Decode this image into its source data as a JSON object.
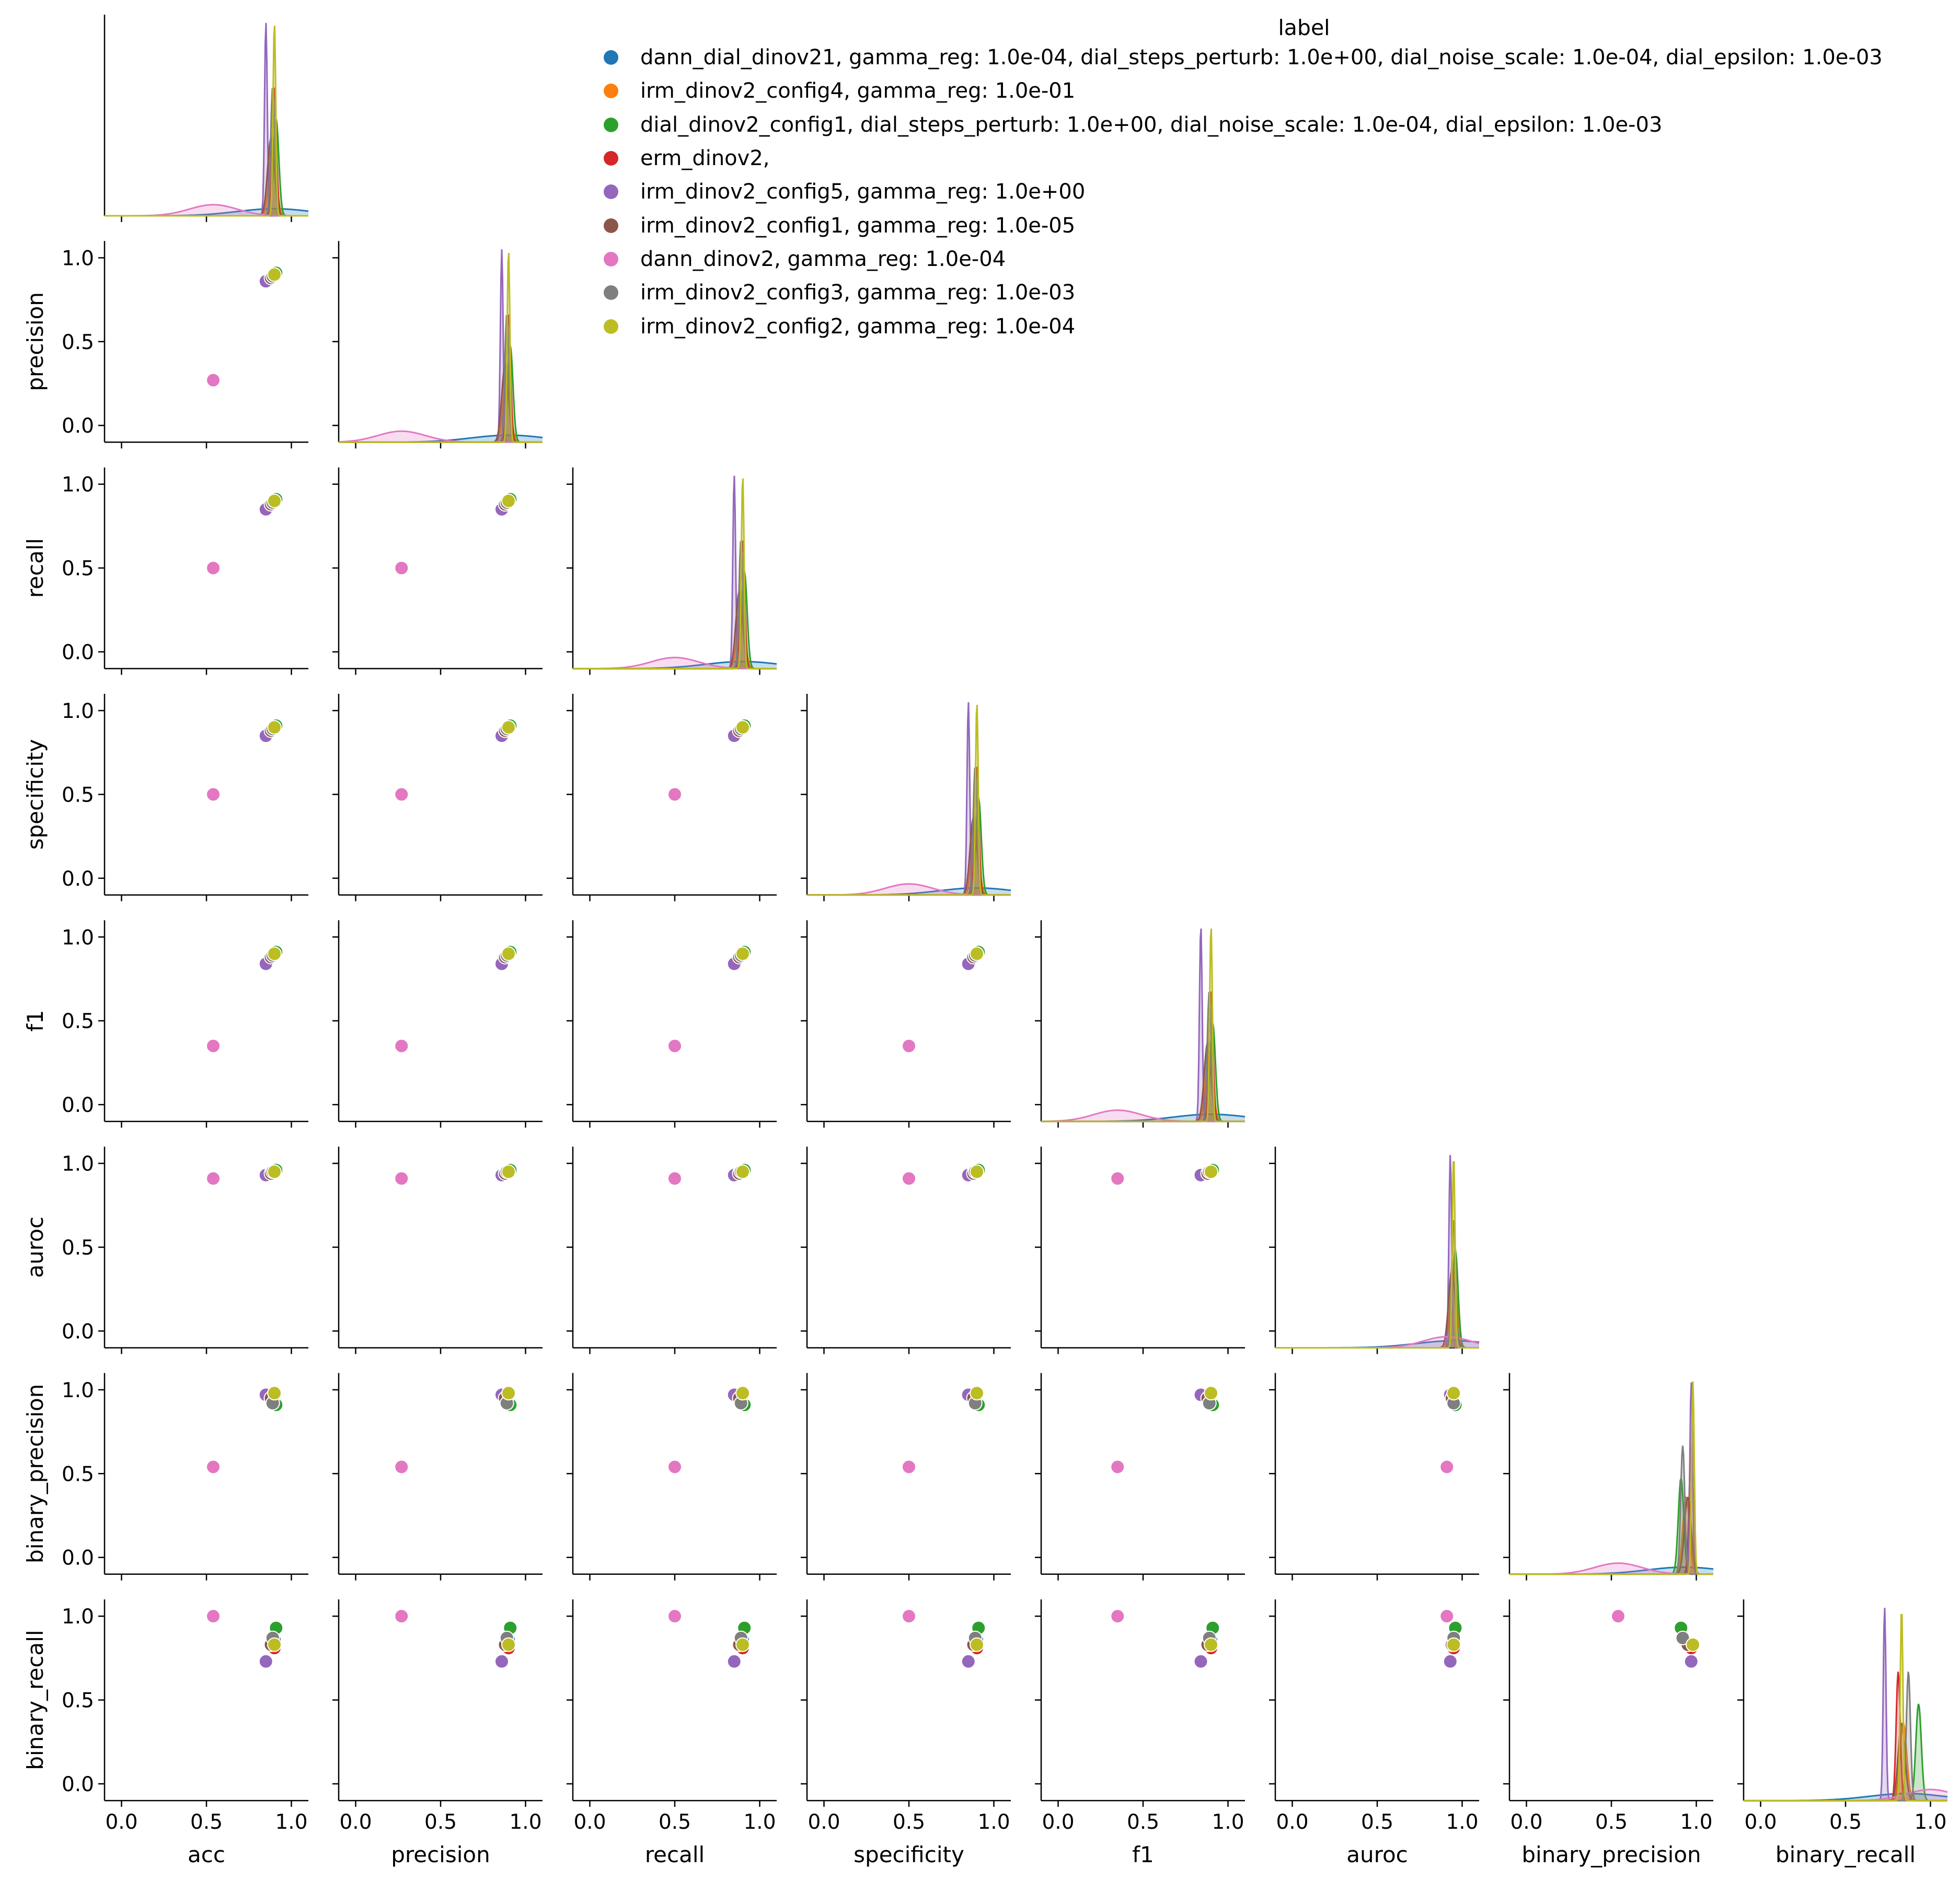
{
  "chart_data": {
    "type": "pairplot",
    "variables": [
      "acc",
      "precision",
      "recall",
      "specificity",
      "f1",
      "auroc",
      "binary_precision",
      "binary_recall"
    ],
    "ticks": [
      "0.0",
      "0.5",
      "1.0"
    ],
    "xlim": [
      -0.1,
      1.1
    ],
    "ylim": [
      -0.1,
      1.1
    ],
    "diagonal": "kde",
    "offdiagonal": "scatter",
    "corner": true,
    "legend_title": "label",
    "legend_position": "top-right",
    "series": [
      {
        "name": "dann_dial_dinov21, gamma_reg: 1.0e-04, dial_steps_perturb: 1.0e+00, dial_noise_scale: 1.0e-04, dial_epsilon: 1.0e-03",
        "color": "#1f77b4",
        "values": {
          "acc": 0.9,
          "precision": 0.9,
          "recall": 0.9,
          "specificity": 0.9,
          "f1": 0.9,
          "auroc": 0.95,
          "binary_precision": 0.93,
          "binary_recall": 0.86
        }
      },
      {
        "name": "irm_dinov2_config4, gamma_reg: 1.0e-01",
        "color": "#ff7f0e",
        "values": {
          "acc": 0.89,
          "precision": 0.89,
          "recall": 0.89,
          "specificity": 0.89,
          "f1": 0.89,
          "auroc": 0.95,
          "binary_precision": 0.94,
          "binary_recall": 0.84
        }
      },
      {
        "name": "dial_dinov2_config1, dial_steps_perturb: 1.0e+00, dial_noise_scale: 1.0e-04, dial_epsilon: 1.0e-03",
        "color": "#2ca02c",
        "values": {
          "acc": 0.91,
          "precision": 0.91,
          "recall": 0.91,
          "specificity": 0.91,
          "f1": 0.91,
          "auroc": 0.96,
          "binary_precision": 0.91,
          "binary_recall": 0.93
        }
      },
      {
        "name": "erm_dinov2,",
        "color": "#d62728",
        "values": {
          "acc": 0.9,
          "precision": 0.9,
          "recall": 0.9,
          "specificity": 0.9,
          "f1": 0.9,
          "auroc": 0.95,
          "binary_precision": 0.97,
          "binary_recall": 0.81
        }
      },
      {
        "name": "irm_dinov2_config5, gamma_reg: 1.0e+00",
        "color": "#9467bd",
        "values": {
          "acc": 0.85,
          "precision": 0.86,
          "recall": 0.85,
          "specificity": 0.85,
          "f1": 0.84,
          "auroc": 0.93,
          "binary_precision": 0.97,
          "binary_recall": 0.73
        }
      },
      {
        "name": "irm_dinov2_config1, gamma_reg: 1.0e-05",
        "color": "#8c564b",
        "values": {
          "acc": 0.88,
          "precision": 0.88,
          "recall": 0.88,
          "specificity": 0.88,
          "f1": 0.88,
          "auroc": 0.94,
          "binary_precision": 0.95,
          "binary_recall": 0.83
        }
      },
      {
        "name": "dann_dinov2, gamma_reg: 1.0e-04",
        "color": "#e377c2",
        "values": {
          "acc": 0.54,
          "precision": 0.27,
          "recall": 0.5,
          "specificity": 0.5,
          "f1": 0.35,
          "auroc": 0.91,
          "binary_precision": 0.54,
          "binary_recall": 1.0
        }
      },
      {
        "name": "irm_dinov2_config3, gamma_reg: 1.0e-03",
        "color": "#7f7f7f",
        "values": {
          "acc": 0.89,
          "precision": 0.89,
          "recall": 0.89,
          "specificity": 0.89,
          "f1": 0.89,
          "auroc": 0.95,
          "binary_precision": 0.92,
          "binary_recall": 0.87
        }
      },
      {
        "name": "irm_dinov2_config2, gamma_reg: 1.0e-04",
        "color": "#bcbd22",
        "values": {
          "acc": 0.9,
          "precision": 0.9,
          "recall": 0.9,
          "specificity": 0.9,
          "f1": 0.9,
          "auroc": 0.95,
          "binary_precision": 0.98,
          "binary_recall": 0.83
        }
      }
    ]
  }
}
